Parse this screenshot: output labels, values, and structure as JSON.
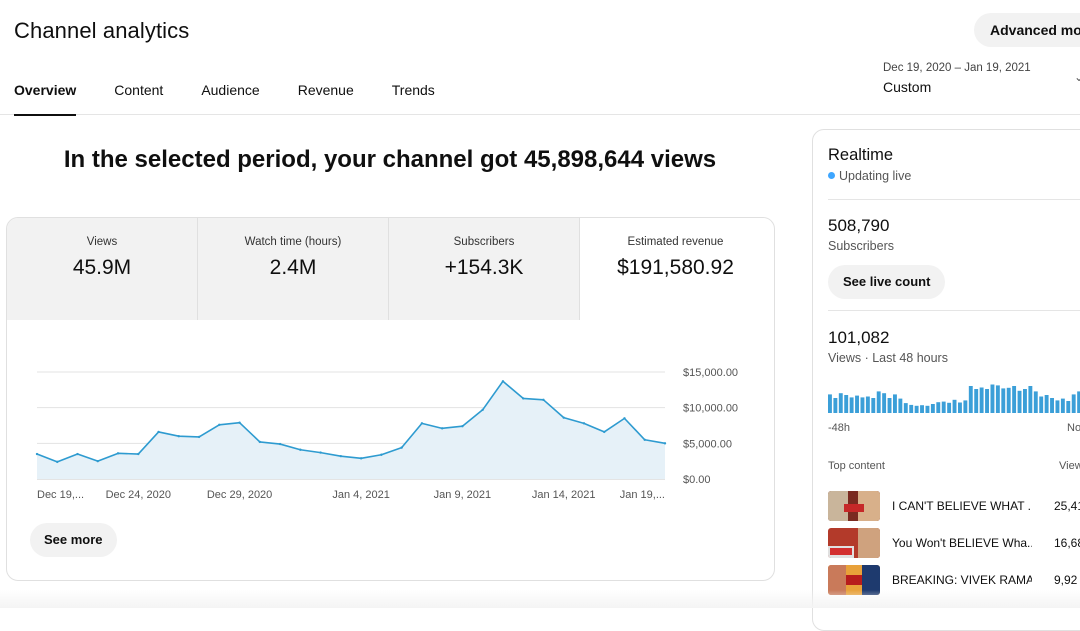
{
  "header": {
    "title": "Channel analytics",
    "advanced_mode_label": "Advanced mode",
    "tabs": [
      {
        "label": "Overview",
        "active": true
      },
      {
        "label": "Content",
        "active": false
      },
      {
        "label": "Audience",
        "active": false
      },
      {
        "label": "Revenue",
        "active": false
      },
      {
        "label": "Trends",
        "active": false
      }
    ],
    "date_range": "Dec 19, 2020 – Jan 19, 2021",
    "date_preset": "Custom"
  },
  "summary": {
    "headline": "In the selected period, your channel got 45,898,644 views"
  },
  "metrics": [
    {
      "label": "Views",
      "value": "45.9M",
      "selected": false
    },
    {
      "label": "Watch time (hours)",
      "value": "2.4M",
      "selected": false
    },
    {
      "label": "Subscribers",
      "value": "+154.3K",
      "selected": false
    },
    {
      "label": "Estimated revenue",
      "value": "$191,580.92",
      "selected": true
    }
  ],
  "chart_data": {
    "type": "area",
    "title": "",
    "xlabel": "",
    "ylabel": "",
    "x_tick_labels": [
      "Dec 19,...",
      "Dec 24, 2020",
      "Dec 29, 2020",
      "Jan 4, 2021",
      "Jan 9, 2021",
      "Jan 14, 2021",
      "Jan 19,..."
    ],
    "y_tick_labels": [
      "$15,000.00",
      "$10,000.00",
      "$5,000.00",
      "$0.00"
    ],
    "ylim": [
      0,
      15000
    ],
    "grid": true,
    "color": "#2e9bd0",
    "fill_color": "#e6f1f8",
    "x": [
      "Dec 19",
      "Dec 20",
      "Dec 21",
      "Dec 22",
      "Dec 23",
      "Dec 24",
      "Dec 25",
      "Dec 26",
      "Dec 27",
      "Dec 28",
      "Dec 29",
      "Dec 30",
      "Dec 31",
      "Jan 1",
      "Jan 2",
      "Jan 3",
      "Jan 4",
      "Jan 5",
      "Jan 6",
      "Jan 7",
      "Jan 8",
      "Jan 9",
      "Jan 10",
      "Jan 11",
      "Jan 12",
      "Jan 13",
      "Jan 14",
      "Jan 15",
      "Jan 16",
      "Jan 17",
      "Jan 18",
      "Jan 19"
    ],
    "values": [
      3500,
      2400,
      3500,
      2500,
      3600,
      3500,
      6600,
      6000,
      5900,
      7600,
      7900,
      5200,
      4900,
      4100,
      3700,
      3200,
      2900,
      3400,
      4400,
      7800,
      7100,
      7400,
      9700,
      13700,
      11300,
      11100,
      8600,
      7800,
      6600,
      8500,
      5500,
      5000
    ]
  },
  "see_more_label": "See more",
  "realtime": {
    "title": "Realtime",
    "status": "Updating live",
    "subscribers_value": "508,790",
    "subscribers_label": "Subscribers",
    "live_count_button": "See live count",
    "views_value": "101,082",
    "views_label": "Views · Last 48 hours",
    "axis_left": "-48h",
    "axis_right": "Now",
    "bar_color": "#3b9fd8",
    "bars": [
      0.62,
      0.5,
      0.66,
      0.6,
      0.52,
      0.58,
      0.52,
      0.55,
      0.5,
      0.72,
      0.66,
      0.5,
      0.62,
      0.48,
      0.33,
      0.27,
      0.24,
      0.26,
      0.24,
      0.3,
      0.36,
      0.38,
      0.34,
      0.44,
      0.35,
      0.42,
      0.9,
      0.8,
      0.85,
      0.8,
      0.95,
      0.92,
      0.82,
      0.84,
      0.9,
      0.74,
      0.8,
      0.9,
      0.72,
      0.55,
      0.6,
      0.5,
      0.42,
      0.48,
      0.4,
      0.62,
      0.72,
      0.8
    ],
    "top_content_title": "Top content",
    "top_content_column": "Views",
    "top_content": [
      {
        "title": "I CAN'T BELIEVE WHAT ...",
        "views": "25,41"
      },
      {
        "title": "You Won't BELIEVE Wha...",
        "views": "16,68"
      },
      {
        "title": "BREAKING: VIVEK RAMA...",
        "views": "9,92"
      }
    ]
  }
}
